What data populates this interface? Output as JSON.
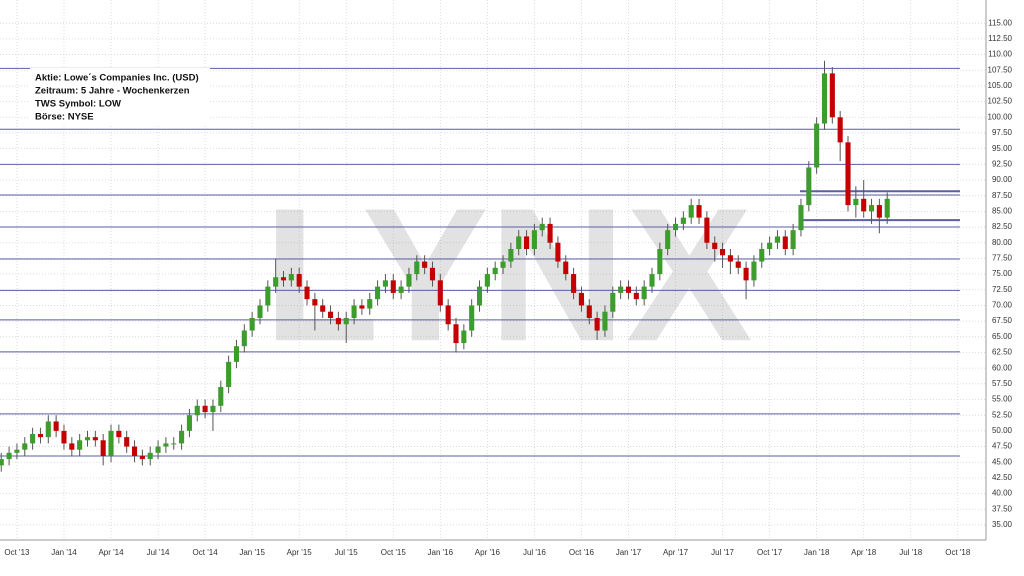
{
  "chart_data": {
    "type": "candlestick",
    "info": [
      "Aktie: Lowe´s Companies Inc. (USD)",
      "Zeitraum: 5 Jahre - Wochenkerzen",
      "TWS Symbol: LOW",
      "Börse: NYSE"
    ],
    "watermark": "LYNX",
    "up_color": "#3c9c2c",
    "down_color": "#c40000",
    "level_color": "#5a5fa6",
    "xlim": [
      -1.08,
      61.8
    ],
    "ylim": [
      32.6,
      118.7
    ],
    "grid": true,
    "xticks": [
      {
        "value": 0,
        "label": "Oct '13"
      },
      {
        "value": 3,
        "label": "Jan '14"
      },
      {
        "value": 6,
        "label": "Apr '14"
      },
      {
        "value": 9,
        "label": "Jul '14"
      },
      {
        "value": 12,
        "label": "Oct '14"
      },
      {
        "value": 15,
        "label": "Jan '15"
      },
      {
        "value": 18,
        "label": "Apr '15"
      },
      {
        "value": 21,
        "label": "Jul '15"
      },
      {
        "value": 24,
        "label": "Oct '15"
      },
      {
        "value": 27,
        "label": "Jan '16"
      },
      {
        "value": 30,
        "label": "Apr '16"
      },
      {
        "value": 33,
        "label": "Jul '16"
      },
      {
        "value": 36,
        "label": "Oct '16"
      },
      {
        "value": 39,
        "label": "Jan '17"
      },
      {
        "value": 42,
        "label": "Apr '17"
      },
      {
        "value": 45,
        "label": "Jul '17"
      },
      {
        "value": 48,
        "label": "Oct '17"
      },
      {
        "value": 51,
        "label": "Jan '18"
      },
      {
        "value": 54,
        "label": "Apr '18"
      },
      {
        "value": 57,
        "label": "Jul '18"
      },
      {
        "value": 60,
        "label": "Oct '18"
      }
    ],
    "yticks": [
      {
        "value": 35,
        "label": "35.00"
      },
      {
        "value": 37.5,
        "label": "37.50"
      },
      {
        "value": 40,
        "label": "40.00"
      },
      {
        "value": 42.5,
        "label": "42.50"
      },
      {
        "value": 45,
        "label": "45.00"
      },
      {
        "value": 47.5,
        "label": "47.50"
      },
      {
        "value": 50,
        "label": "50.00"
      },
      {
        "value": 52.5,
        "label": "52.50"
      },
      {
        "value": 55,
        "label": "55.00"
      },
      {
        "value": 57.5,
        "label": "57.50"
      },
      {
        "value": 60,
        "label": "60.00"
      },
      {
        "value": 62.5,
        "label": "62.50"
      },
      {
        "value": 65,
        "label": "65.00"
      },
      {
        "value": 67.5,
        "label": "67.50"
      },
      {
        "value": 70,
        "label": "70.00"
      },
      {
        "value": 72.5,
        "label": "72.50"
      },
      {
        "value": 75,
        "label": "75.00"
      },
      {
        "value": 77.5,
        "label": "77.50"
      },
      {
        "value": 80,
        "label": "80.00"
      },
      {
        "value": 82.5,
        "label": "82.50"
      },
      {
        "value": 85,
        "label": "85.00"
      },
      {
        "value": 87.5,
        "label": "87.50"
      },
      {
        "value": 90,
        "label": "90.00"
      },
      {
        "value": 92.5,
        "label": "92.50"
      },
      {
        "value": 95,
        "label": "95.00"
      },
      {
        "value": 97.5,
        "label": "97.50"
      },
      {
        "value": 100,
        "label": "100.00"
      },
      {
        "value": 102.5,
        "label": "102.50"
      },
      {
        "value": 105,
        "label": "105.00"
      },
      {
        "value": 107.5,
        "label": "107.50"
      },
      {
        "value": 110,
        "label": "110.00"
      },
      {
        "value": 112.5,
        "label": "112.50"
      },
      {
        "value": 115,
        "label": "115.00"
      }
    ],
    "levels": [
      107.8,
      98.1,
      92.5,
      87.6,
      82.5,
      77.4,
      72.4,
      67.7,
      62.6,
      52.7,
      46.0
    ],
    "short_levels": [
      88.2,
      83.6
    ],
    "x": [
      -1,
      -0.5,
      0,
      0.5,
      1,
      1.5,
      2,
      2.5,
      3,
      3.5,
      4,
      4.5,
      5,
      5.5,
      6,
      6.5,
      7,
      7.5,
      8,
      8.5,
      9,
      9.5,
      10,
      10.5,
      11,
      11.5,
      12,
      12.5,
      13,
      13.5,
      14,
      14.5,
      15,
      15.5,
      16,
      16.5,
      17,
      17.5,
      18,
      18.5,
      19,
      19.5,
      20,
      20.5,
      21,
      21.5,
      22,
      22.5,
      23,
      23.5,
      24,
      24.5,
      25,
      25.5,
      26,
      26.5,
      27,
      27.5,
      28,
      28.5,
      29,
      29.5,
      30,
      30.5,
      31,
      31.5,
      32,
      32.5,
      33,
      33.5,
      34,
      34.5,
      35,
      35.5,
      36,
      36.5,
      37,
      37.5,
      38,
      38.5,
      39,
      39.5,
      40,
      40.5,
      41,
      41.5,
      42,
      42.5,
      43,
      43.5,
      44,
      44.5,
      45,
      45.5,
      46,
      46.5,
      47,
      47.5,
      48,
      48.5,
      49,
      49.5,
      50,
      50.5,
      51,
      51.5,
      52,
      52.5,
      53,
      53.5,
      54,
      54.5,
      55,
      55.5
    ],
    "open": [
      44.5,
      45.5,
      46.5,
      47,
      48,
      49.5,
      49,
      51.5,
      50,
      48,
      47,
      48.5,
      49,
      48.5,
      46,
      50,
      49,
      47.5,
      46,
      45.5,
      46.5,
      47.5,
      48,
      48,
      50,
      52.5,
      54,
      53,
      54,
      57,
      61,
      63.5,
      66,
      68,
      70,
      73,
      74.5,
      74,
      75,
      73,
      71,
      70,
      69,
      68,
      67,
      68,
      70,
      69.5,
      71,
      73,
      74,
      72,
      73,
      75,
      77,
      76,
      74,
      70,
      67,
      64,
      66,
      70,
      73,
      75,
      76,
      77,
      79,
      81,
      79,
      82,
      83,
      80,
      77,
      75,
      72,
      70,
      68,
      66,
      69,
      72,
      73,
      72,
      71,
      73,
      75,
      79,
      82,
      83,
      84,
      86,
      84,
      80,
      79,
      78,
      77,
      76,
      74,
      77,
      79,
      80,
      81,
      79,
      82,
      86,
      92,
      99,
      107,
      100,
      96,
      86,
      87,
      85,
      86,
      84
    ],
    "high": [
      46.5,
      47.5,
      48,
      49,
      50.5,
      50.5,
      52.5,
      52.5,
      51,
      49,
      49.5,
      50,
      50,
      49.5,
      51,
      51,
      50,
      48.5,
      47,
      47.5,
      48.5,
      49,
      49,
      51,
      53.5,
      55,
      55,
      55,
      58,
      62,
      64.5,
      67,
      69,
      71,
      74,
      77.5,
      75.5,
      76,
      76,
      74,
      72,
      71,
      70,
      69,
      69,
      71,
      71,
      72,
      74,
      75,
      75,
      74,
      76,
      78,
      78,
      77,
      75,
      71,
      68,
      67,
      71,
      74,
      76,
      77,
      78,
      80,
      82,
      82,
      83,
      84,
      84,
      81,
      78,
      76,
      73,
      71,
      69,
      70,
      73,
      74,
      74,
      73,
      74,
      76,
      80,
      83,
      84,
      85,
      87,
      87,
      85,
      81,
      80,
      79,
      78,
      77,
      78,
      80,
      81,
      82,
      82,
      83,
      87,
      93,
      100,
      109,
      108,
      101,
      97,
      89,
      90,
      87,
      87,
      88
    ],
    "low": [
      43.5,
      44.5,
      45.5,
      46,
      47,
      48,
      48,
      49,
      47,
      46,
      46,
      47.5,
      47.5,
      44.5,
      45,
      48,
      46.5,
      45,
      44.5,
      44.5,
      45.5,
      46.5,
      47,
      47,
      49,
      51.5,
      52,
      50,
      53,
      56,
      60,
      62.5,
      65,
      67,
      69,
      72,
      73,
      73,
      72,
      70,
      66,
      68,
      67,
      66,
      64,
      67,
      68.5,
      68.5,
      70,
      72,
      71,
      71,
      72,
      74,
      75,
      73,
      69,
      66,
      62.5,
      63,
      65,
      69,
      72,
      74,
      75,
      76,
      78,
      78,
      78,
      81,
      79,
      76,
      74,
      71,
      69,
      67,
      64.5,
      65,
      68,
      71,
      71,
      70,
      70,
      72,
      74,
      78,
      81,
      82,
      83,
      83,
      79,
      77,
      76,
      75,
      75,
      71,
      73,
      76,
      78,
      79,
      78,
      78,
      81,
      85,
      91,
      98,
      99,
      93,
      85,
      84,
      84,
      83,
      81.5,
      83
    ],
    "close": [
      45.5,
      46.5,
      47,
      48,
      49.5,
      49,
      51.5,
      50,
      48,
      47,
      48.5,
      49,
      48.5,
      46,
      50,
      49,
      47.5,
      46,
      45.5,
      46.5,
      47.5,
      48,
      48,
      50,
      52.5,
      54,
      53,
      54,
      57,
      61,
      63.5,
      66,
      68,
      70,
      73,
      74.5,
      74,
      75,
      73,
      71,
      70,
      69,
      68,
      67,
      68,
      70,
      69.5,
      71,
      73,
      74,
      72,
      73,
      75,
      77,
      76,
      74,
      70,
      67,
      64,
      66,
      70,
      73,
      75,
      76,
      77,
      79,
      81,
      79,
      82,
      83,
      80,
      77,
      75,
      72,
      70,
      68,
      66,
      69,
      72,
      73,
      72,
      71,
      73,
      75,
      79,
      82,
      83,
      84,
      86,
      84,
      80,
      79,
      78,
      77,
      76,
      74,
      77,
      79,
      80,
      81,
      79,
      82,
      86,
      92,
      99,
      107,
      100,
      96,
      86,
      87,
      85,
      86,
      84,
      87
    ]
  }
}
